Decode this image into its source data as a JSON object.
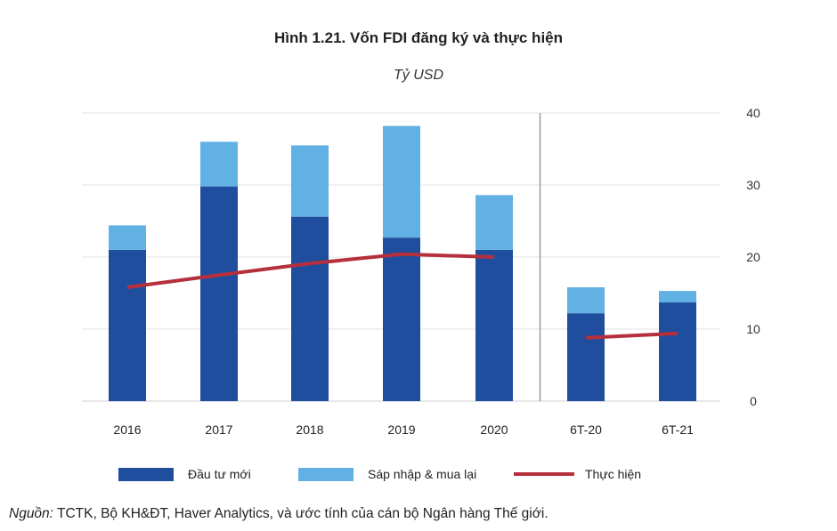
{
  "title": "Hình 1.21. Vốn FDI đăng ký và thực hiện",
  "subtitle": "Tỷ USD",
  "legend": {
    "new_investment": "Đầu tư mới",
    "ma": "Sáp nhập & mua lại",
    "realized": "Thực hiện"
  },
  "source": {
    "label": "Nguồn:",
    "text": " TCTK, Bộ KH&ĐT, Haver Analytics, và ước tính của cán bộ Ngân hàng Thế giới."
  },
  "colors": {
    "new_investment": "#1f4e9e",
    "ma": "#62b1e4",
    "realized": "#b5303c",
    "grid": "#e3e3e3",
    "divider": "#999999"
  },
  "chart_data": {
    "type": "bar",
    "stacked": true,
    "categories": [
      "2016",
      "2017",
      "2018",
      "2019",
      "2020",
      "6T-20",
      "6T-21"
    ],
    "series": [
      {
        "name": "Đầu tư mới",
        "type": "bar",
        "values": [
          21.0,
          29.8,
          25.6,
          22.7,
          21.0,
          12.2,
          13.7
        ]
      },
      {
        "name": "Sáp nhập & mua lại",
        "type": "bar",
        "values": [
          3.4,
          6.2,
          9.9,
          15.5,
          7.6,
          3.6,
          1.6
        ]
      },
      {
        "name": "Thực hiện",
        "type": "line",
        "values": [
          15.8,
          17.5,
          19.1,
          20.4,
          20.0,
          8.8,
          9.4
        ]
      }
    ],
    "line_segments": [
      [
        0,
        4
      ],
      [
        5,
        6
      ]
    ],
    "y_axis": {
      "position": "right",
      "ticks": [
        0,
        10,
        20,
        30,
        40
      ],
      "ylim": [
        0,
        40
      ]
    },
    "divider_after_index": 4,
    "grid": true,
    "legend_position": "bottom"
  }
}
